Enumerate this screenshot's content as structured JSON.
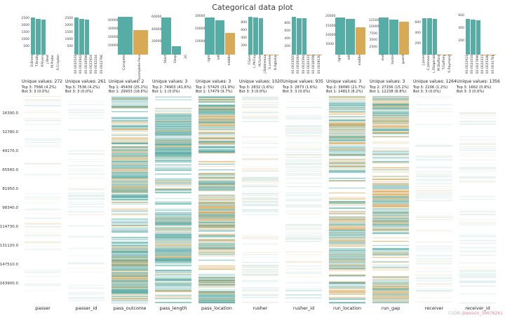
{
  "title": "Categorical data plot",
  "watermark": {
    "prefix": "CSDN ",
    "handle": "@weixin_39678261"
  },
  "colors": {
    "bar_teal": "#55ada6",
    "bar_orange": "#d9aa56",
    "heat_teal": "#4fa59e",
    "heat_orange": "#d6a049",
    "text": "#333333"
  },
  "index_ticks": [
    "16390.0",
    "32780.0",
    "49170.0",
    "65560.0",
    "81950.0",
    "98340.0",
    "114730.0",
    "131120.0",
    "147510.0",
    "163900.0"
  ],
  "chart_data": [
    {
      "type": "bar",
      "name": "passer",
      "categories": [
        "D.Brees",
        "T.Brady",
        "P.Rivers",
        "J.Best",
        "M.Prater",
        "R.Crayton"
      ],
      "values": [
        2600,
        2500,
        2466,
        3,
        3,
        3
      ],
      "bar_colors": [
        "teal",
        "teal",
        "teal",
        "orange",
        "orange",
        "orange"
      ],
      "yticks": [
        500,
        1000,
        1500,
        2000,
        2500
      ],
      "ymax": 2750,
      "unique_label": "Unique values: 272",
      "top_label": "Top 3: 7566 (4.2%)",
      "bot_label": "Bot 3: 3 (0.0%)",
      "heat": {
        "density": 0.3,
        "orange_ratio": 0.22,
        "alpha_min": 0.04,
        "alpha_max": 0.22
      }
    },
    {
      "type": "bar",
      "name": "passer_id",
      "categories": [
        "00-0020531",
        "00-0022942",
        "00-0019596",
        "00-0022924",
        "00-0032244",
        "00-0022766"
      ],
      "values": [
        2590,
        2490,
        2456,
        3,
        3,
        3
      ],
      "bar_colors": [
        "teal",
        "teal",
        "teal",
        "orange",
        "orange",
        "orange"
      ],
      "yticks": [
        500,
        1000,
        1500,
        2000,
        2500
      ],
      "ymax": 2750,
      "unique_label": "Unique values: 261",
      "top_label": "Top 3: 7536 (4.2%)",
      "bot_label": "Bot 3: 3 (0.0%)",
      "heat": {
        "density": 0.3,
        "orange_ratio": 0.22,
        "alpha_min": 0.04,
        "alpha_max": 0.22
      }
    },
    {
      "type": "bar",
      "name": "pass_outcome",
      "categories": [
        "Complete",
        "Incomplete Pass"
      ],
      "values": [
        45439,
        29933
      ],
      "bar_colors": [
        "teal",
        "orange"
      ],
      "yticks": [
        10000,
        20000,
        30000,
        40000
      ],
      "ymax": 47500,
      "unique_label": "Unique values: 2",
      "top_label": "Top 1: 45439 (25.2%)",
      "bot_label": "Bot 1: 29933 (16.6%)",
      "heat": {
        "density": 0.95,
        "orange_ratio": 0.33,
        "alpha_min": 0.3,
        "alpha_max": 0.95
      }
    },
    {
      "type": "bar",
      "name": "pass_length",
      "categories": [
        "Short",
        "Deep",
        "20"
      ],
      "values": [
        60958,
        13945,
        1
      ],
      "bar_colors": [
        "teal",
        "teal",
        "orange"
      ],
      "yticks": [
        20000,
        40000,
        60000
      ],
      "ymax": 64000,
      "unique_label": "Unique values: 3",
      "top_label": "Top 2: 74903 (41.6%)",
      "bot_label": "Bot 1: 1 (0.0%)",
      "heat": {
        "density": 0.95,
        "orange_ratio": 0.18,
        "alpha_min": 0.3,
        "alpha_max": 0.95
      }
    },
    {
      "type": "bar",
      "name": "pass_location",
      "categories": [
        "right",
        "left",
        "middle"
      ],
      "values": [
        30000,
        27425,
        17479
      ],
      "bar_colors": [
        "teal",
        "teal",
        "orange"
      ],
      "yticks": [
        10000,
        20000,
        30000
      ],
      "ymax": 31500,
      "unique_label": "Unique values: 3",
      "top_label": "Top 2: 57425 (31.9%)",
      "bot_label": "Bot 1: 17479 (9.7%)",
      "heat": {
        "density": 0.95,
        "orange_ratio": 0.38,
        "alpha_min": 0.3,
        "alpha_max": 0.95
      }
    },
    {
      "type": "bar",
      "name": "rusher",
      "categories": [
        "F.Gore",
        "L.McCoy",
        "M.Forte",
        "J.Babineaux",
        "S.Lechler",
        "N.Agholor"
      ],
      "values": [
        960,
        944,
        928,
        3,
        3,
        3
      ],
      "bar_colors": [
        "teal",
        "teal",
        "teal",
        "orange",
        "orange",
        "orange"
      ],
      "yticks": [
        200,
        400,
        600,
        800
      ],
      "ymax": 1000,
      "unique_label": "Unique values: 1020",
      "top_label": "Top 3: 2832 (1.6%)",
      "bot_label": "Bot 3: 3 (0.0%)",
      "heat": {
        "density": 0.38,
        "orange_ratio": 0.3,
        "alpha_min": 0.05,
        "alpha_max": 0.28
      }
    },
    {
      "type": "bar",
      "name": "rusher_id",
      "categories": [
        "00-0023500",
        "00-0026184",
        "00-0025394",
        "00-0020337",
        "00-0016098",
        "00-0028130"
      ],
      "values": [
        975,
        955,
        943,
        3,
        3,
        3
      ],
      "bar_colors": [
        "teal",
        "teal",
        "teal",
        "orange",
        "orange",
        "orange"
      ],
      "yticks": [
        200,
        400,
        600,
        800
      ],
      "ymax": 1020,
      "unique_label": "Unique values: 935",
      "top_label": "Top 3: 2873 (1.6%)",
      "bot_label": "Bot 3: 3 (0.0%)",
      "heat": {
        "density": 0.38,
        "orange_ratio": 0.3,
        "alpha_min": 0.05,
        "alpha_max": 0.28
      }
    },
    {
      "type": "bar",
      "name": "run_location",
      "categories": [
        "right",
        "left",
        "middle"
      ],
      "values": [
        20000,
        19090,
        14813
      ],
      "bar_colors": [
        "teal",
        "teal",
        "orange"
      ],
      "yticks": [
        5000,
        10000,
        15000,
        20000
      ],
      "ymax": 21000,
      "unique_label": "Unique values: 3",
      "top_label": "Top 2: 39090 (21.7%)",
      "bot_label": "Bot 1: 14813 (8.2%)",
      "heat": {
        "density": 0.92,
        "orange_ratio": 0.38,
        "alpha_min": 0.25,
        "alpha_max": 0.9
      }
    },
    {
      "type": "bar",
      "name": "run_gap",
      "categories": [
        "end",
        "tackle",
        "guard"
      ],
      "values": [
        14000,
        13156,
        12238
      ],
      "bar_colors": [
        "teal",
        "teal",
        "orange"
      ],
      "yticks": [
        2500,
        5000,
        7500,
        10000,
        12500
      ],
      "ymax": 14700,
      "unique_label": "Unique values: 3",
      "top_label": "Top 2: 27156 (15.1%)",
      "bot_label": "Bot 1: 12238 (6.8%)",
      "heat": {
        "density": 0.92,
        "orange_ratio": 0.44,
        "alpha_min": 0.25,
        "alpha_max": 0.9
      }
    },
    {
      "type": "bar",
      "name": "receiver",
      "categories": [
        "J.Jones",
        "C.Johnson",
        "L.Fitzgerald",
        "M.Stafford",
        "T.Gaffney",
        "K.Raymond"
      ],
      "values": [
        710,
        702,
        694,
        3,
        3,
        3
      ],
      "bar_colors": [
        "teal",
        "teal",
        "teal",
        "orange",
        "orange",
        "orange"
      ],
      "yticks": [
        200,
        400,
        600
      ],
      "ymax": 760,
      "unique_label": "Unique values: 1264",
      "top_label": "Top 3: 2106 (1.2%)",
      "bot_label": "Bot 3: 3 (0.0%)",
      "heat": {
        "density": 0.34,
        "orange_ratio": 0.28,
        "alpha_min": 0.04,
        "alpha_max": 0.24
      }
    },
    {
      "type": "bar",
      "name": "receiver_id",
      "categories": [
        "00-0022921",
        "00-0024334",
        "00-0027696",
        "00-0020337",
        "00-0025346",
        "00-0031761"
      ],
      "values": [
        560,
        554,
        548,
        3,
        3,
        3
      ],
      "bar_colors": [
        "teal",
        "teal",
        "teal",
        "orange",
        "orange",
        "orange"
      ],
      "yticks": [
        200,
        400,
        600
      ],
      "ymax": 620,
      "unique_label": "Unique values: 1356",
      "top_label": "Top 3: 1662 (0.9%)",
      "bot_label": "Bot 3: 3 (0.0%)",
      "heat": {
        "density": 0.34,
        "orange_ratio": 0.28,
        "alpha_min": 0.04,
        "alpha_max": 0.24
      }
    }
  ]
}
